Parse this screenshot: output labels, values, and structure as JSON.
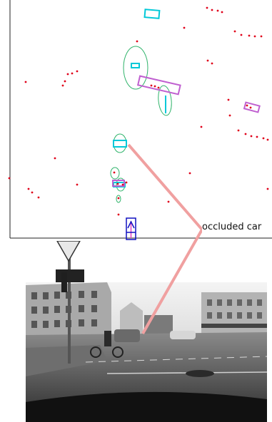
{
  "annotation": {
    "label": "occluded car"
  },
  "legend_colors": {
    "landmark_points": "#e0001a",
    "tracked_object_box": "#00c8d8",
    "detection_box": "#c060d0",
    "uncertainty_ellipse": "#2fb36a",
    "ego_vehicle": "#1010c0",
    "link_line": "#f0a0a0"
  }
}
